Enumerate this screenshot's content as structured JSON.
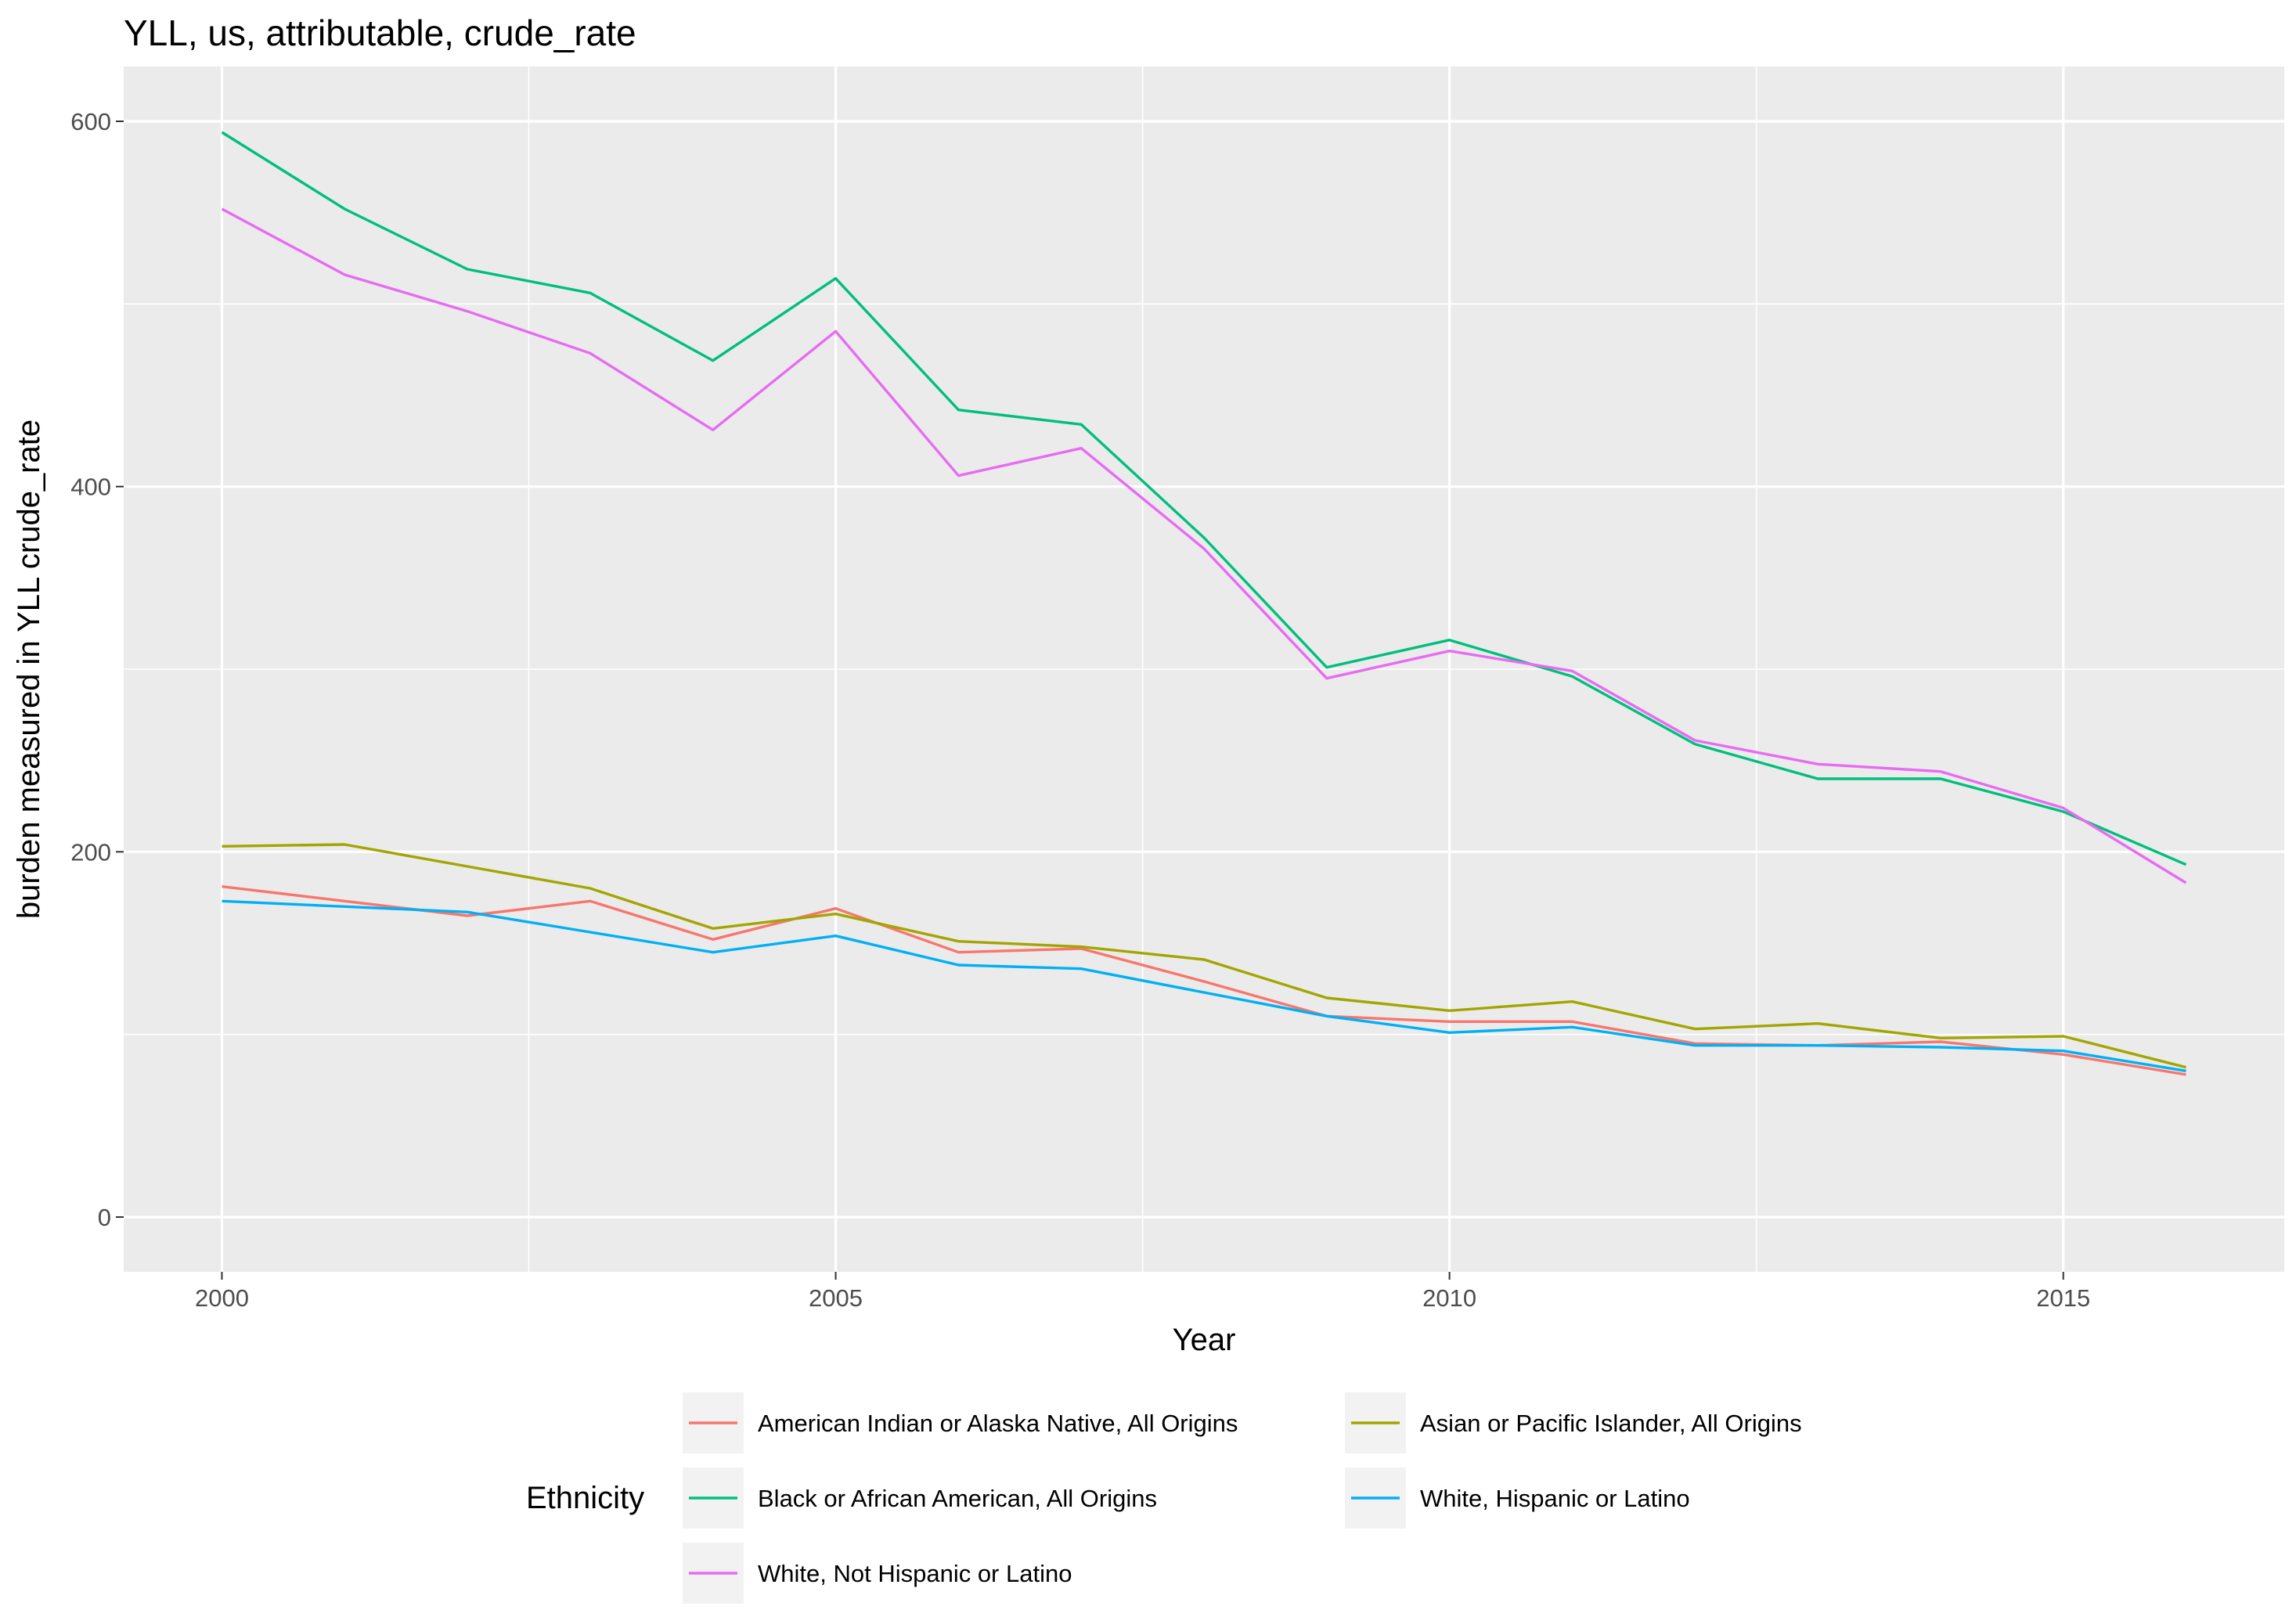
{
  "chart_data": {
    "type": "line",
    "title": "YLL, us, attributable, crude_rate",
    "xlabel": "Year",
    "ylabel": "burden measured in YLL crude_rate",
    "xlim": [
      1999.2,
      2016.8
    ],
    "ylim": [
      -30,
      630
    ],
    "x_ticks": [
      2000,
      2005,
      2010,
      2015
    ],
    "y_ticks": [
      0,
      200,
      400,
      600
    ],
    "grid": true,
    "legend": {
      "title": "Ethnicity",
      "placement": "bottom"
    },
    "x": [
      2000,
      2001,
      2002,
      2003,
      2004,
      2005,
      2006,
      2007,
      2008,
      2009,
      2010,
      2011,
      2012,
      2013,
      2014,
      2015,
      2016
    ],
    "series": [
      {
        "name": "American Indian or Alaska Native, All Origins",
        "color": "#F8766D",
        "values": [
          181,
          173,
          165,
          173,
          152,
          169,
          145,
          147,
          129,
          110,
          107,
          107,
          95,
          94,
          96,
          89,
          78
        ]
      },
      {
        "name": "Asian or Pacific Islander, All Origins",
        "color": "#A3A500",
        "values": [
          203,
          204,
          192,
          180,
          158,
          166,
          151,
          148,
          141,
          120,
          113,
          118,
          103,
          106,
          98,
          99,
          82
        ]
      },
      {
        "name": "Black or African American, All Origins",
        "color": "#00BF7D",
        "values": [
          594,
          552,
          519,
          506,
          469,
          514,
          442,
          434,
          372,
          301,
          316,
          296,
          259,
          240,
          240,
          222,
          193
        ]
      },
      {
        "name": "White, Hispanic or Latino",
        "color": "#00B0F6",
        "values": [
          173,
          170,
          167,
          156,
          145,
          154,
          138,
          136,
          123,
          110,
          101,
          104,
          94,
          94,
          93,
          91,
          80
        ]
      },
      {
        "name": "White, Not Hispanic or Latino",
        "color": "#E76BF3",
        "values": [
          552,
          516,
          496,
          473,
          431,
          485,
          406,
          421,
          366,
          295,
          310,
          299,
          261,
          248,
          244,
          224,
          183
        ]
      }
    ]
  }
}
